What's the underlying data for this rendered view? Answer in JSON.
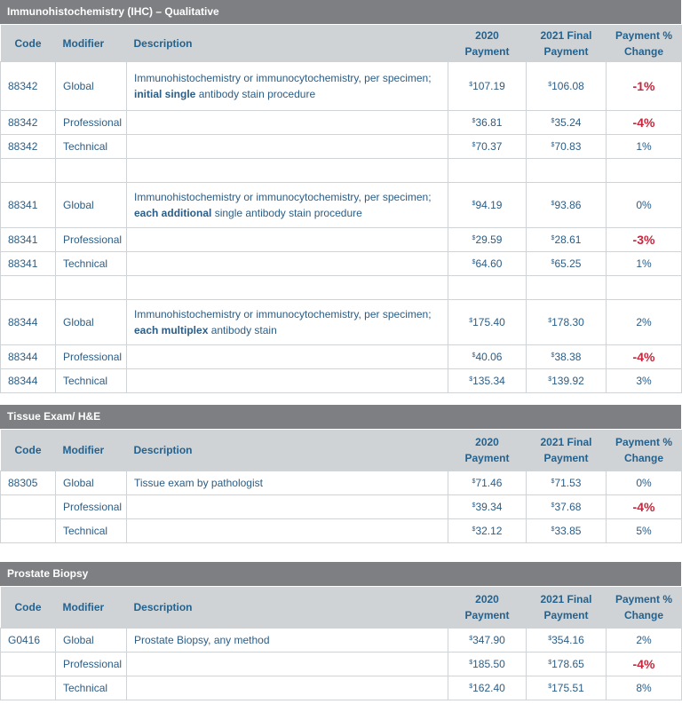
{
  "colors": {
    "section_bar": "#7d7f82",
    "header_bg": "#d0d3d6",
    "text": "#2b5d86",
    "negative": "#c8263c"
  },
  "columns": {
    "code": "Code",
    "modifier": "Modifier",
    "description": "Description",
    "y2020_line1": "2020",
    "y2020_line2": "Payment",
    "y2021_line1": "2021 Final",
    "y2021_line2": "Payment",
    "pct_line1": "Payment %",
    "pct_line2": "Change"
  },
  "currency_symbol": "$",
  "sections": [
    {
      "title": "Immunohistochemistry (IHC) – Qualitative",
      "rows": [
        {
          "code": "88342",
          "modifier": "Global",
          "desc_pre": "Immunohistochemistry or immunocytochemistry, per specimen;",
          "desc_bold": "initial single",
          "desc_post": " antibody stain procedure",
          "p2020": "107.19",
          "p2021": "106.08",
          "pct": "-1%",
          "neg": true
        },
        {
          "code": "88342",
          "modifier": "Professional",
          "p2020": "36.81",
          "p2021": "35.24",
          "pct": "-4%",
          "neg": true
        },
        {
          "code": "88342",
          "modifier": "Technical",
          "p2020": "70.37",
          "p2021": "70.83",
          "pct": "1%",
          "neg": false
        },
        {
          "spacer": true
        },
        {
          "code": "88341",
          "modifier": "Global",
          "desc_pre": "Immunohistochemistry or immunocytochemistry, per specimen;",
          "desc_bold": "each additional",
          "desc_post": " single antibody stain procedure",
          "p2020": "94.19",
          "p2021": "93.86",
          "pct": "0%",
          "neg": false
        },
        {
          "code": "88341",
          "modifier": "Professional",
          "p2020": "29.59",
          "p2021": "28.61",
          "pct": "-3%",
          "neg": true
        },
        {
          "code": "88341",
          "modifier": "Technical",
          "p2020": "64.60",
          "p2021": "65.25",
          "pct": "1%",
          "neg": false
        },
        {
          "spacer": true
        },
        {
          "code": "88344",
          "modifier": "Global",
          "desc_pre": "Immunohistochemistry or immunocytochemistry, per specimen;",
          "desc_bold": "each multiplex",
          "desc_post": " antibody stain",
          "p2020": "175.40",
          "p2021": "178.30",
          "pct": "2%",
          "neg": false
        },
        {
          "code": "88344",
          "modifier": "Professional",
          "p2020": "40.06",
          "p2021": "38.38",
          "pct": "-4%",
          "neg": true
        },
        {
          "code": "88344",
          "modifier": "Technical",
          "p2020": "135.34",
          "p2021": "139.92",
          "pct": "3%",
          "neg": false
        }
      ]
    },
    {
      "title": "Tissue Exam/ H&E",
      "rows": [
        {
          "code": "88305",
          "modifier": "Global",
          "desc_pre": "Tissue exam by pathologist",
          "p2020": "71.46",
          "p2021": "71.53",
          "pct": "0%",
          "neg": false
        },
        {
          "code": "",
          "modifier": "Professional",
          "p2020": "39.34",
          "p2021": "37.68",
          "pct": "-4%",
          "neg": true
        },
        {
          "code": "",
          "modifier": "Technical",
          "p2020": "32.12",
          "p2021": "33.85",
          "pct": "5%",
          "neg": false
        }
      ]
    },
    {
      "title": "Prostate Biopsy",
      "rows": [
        {
          "code": "G0416",
          "modifier": "Global",
          "desc_pre": "Prostate Biopsy, any method",
          "p2020": "347.90",
          "p2021": "354.16",
          "pct": "2%",
          "neg": false
        },
        {
          "code": "",
          "modifier": "Professional",
          "p2020": "185.50",
          "p2021": "178.65",
          "pct": "-4%",
          "neg": true
        },
        {
          "code": "",
          "modifier": "Technical",
          "p2020": "162.40",
          "p2021": "175.51",
          "pct": "8%",
          "neg": false
        }
      ]
    }
  ]
}
